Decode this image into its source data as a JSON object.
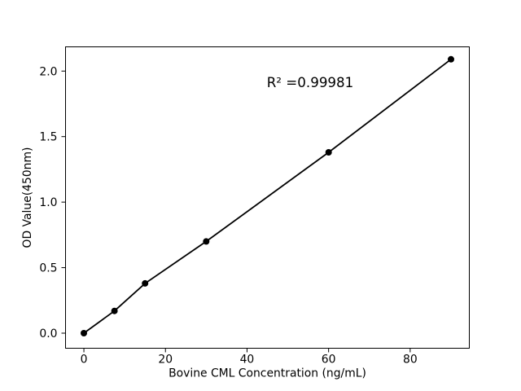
{
  "figure": {
    "background_color": "#ffffff"
  },
  "chart_data": {
    "type": "line",
    "subtype": "scatter-with-fit-line",
    "title": "",
    "xlabel": "Bovine CML Concentration (ng/mL)",
    "ylabel": "OD Value(450nm)",
    "annotation": "R² =0.99981",
    "r_squared": 0.99981,
    "series": [
      {
        "name": "standard-curve",
        "x": [
          0,
          7.5,
          15,
          30,
          60,
          90
        ],
        "y": [
          0.0,
          0.17,
          0.38,
          0.7,
          1.38,
          2.09
        ],
        "marker": "filled-circle",
        "line": "solid"
      }
    ],
    "xtick_labels": [
      "0",
      "20",
      "40",
      "60",
      "80"
    ],
    "ytick_labels": [
      "0.0",
      "0.5",
      "1.0",
      "1.5",
      "2.0"
    ],
    "xlim": [
      -4.5,
      94.5
    ],
    "ylim": [
      -0.115,
      2.185
    ],
    "grid": false,
    "legend": null,
    "colors": {
      "line": "#000000",
      "marker": "#000000",
      "text": "#000000",
      "spine": "#000000",
      "background": "#ffffff"
    }
  }
}
